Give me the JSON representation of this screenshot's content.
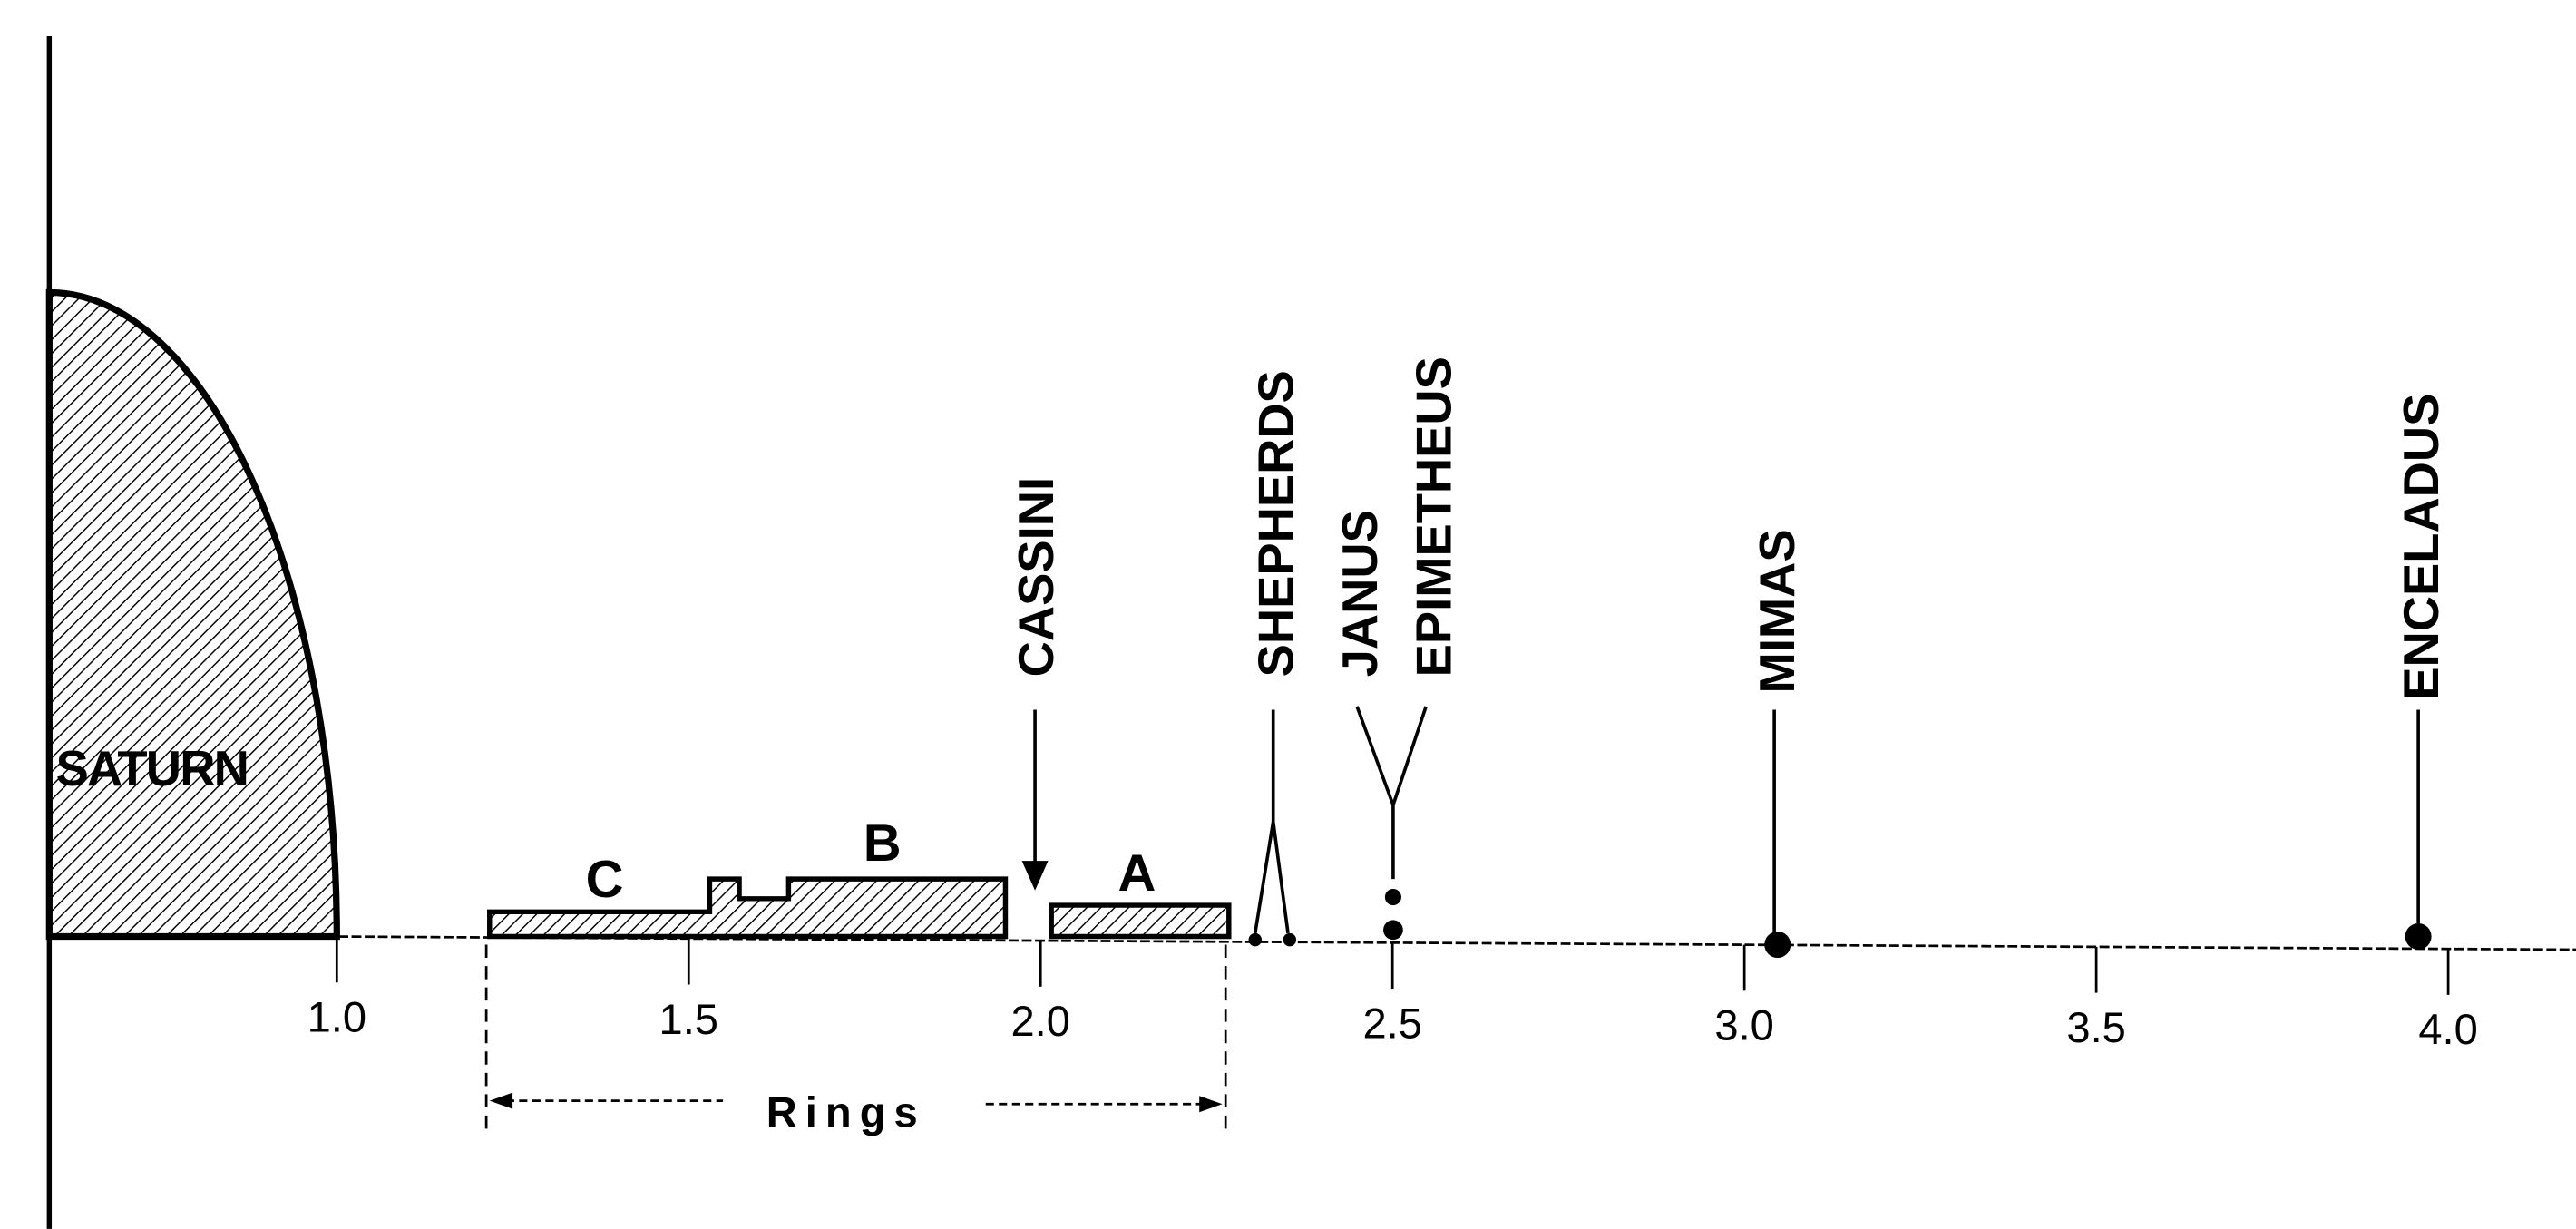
{
  "diagram": {
    "body": "SATURN",
    "rings": {
      "c": "C",
      "b": "B",
      "a": "A",
      "gap": "CASSINI",
      "span": "Rings"
    },
    "moons": [
      "SHEPHERDS",
      "JANUS",
      "EPIMETHEUS",
      "MIMAS",
      "ENCELADUS"
    ],
    "axis_ticks": [
      "1.0",
      "1.5",
      "2.0",
      "2.5",
      "3.0",
      "3.5",
      "4.0"
    ]
  }
}
